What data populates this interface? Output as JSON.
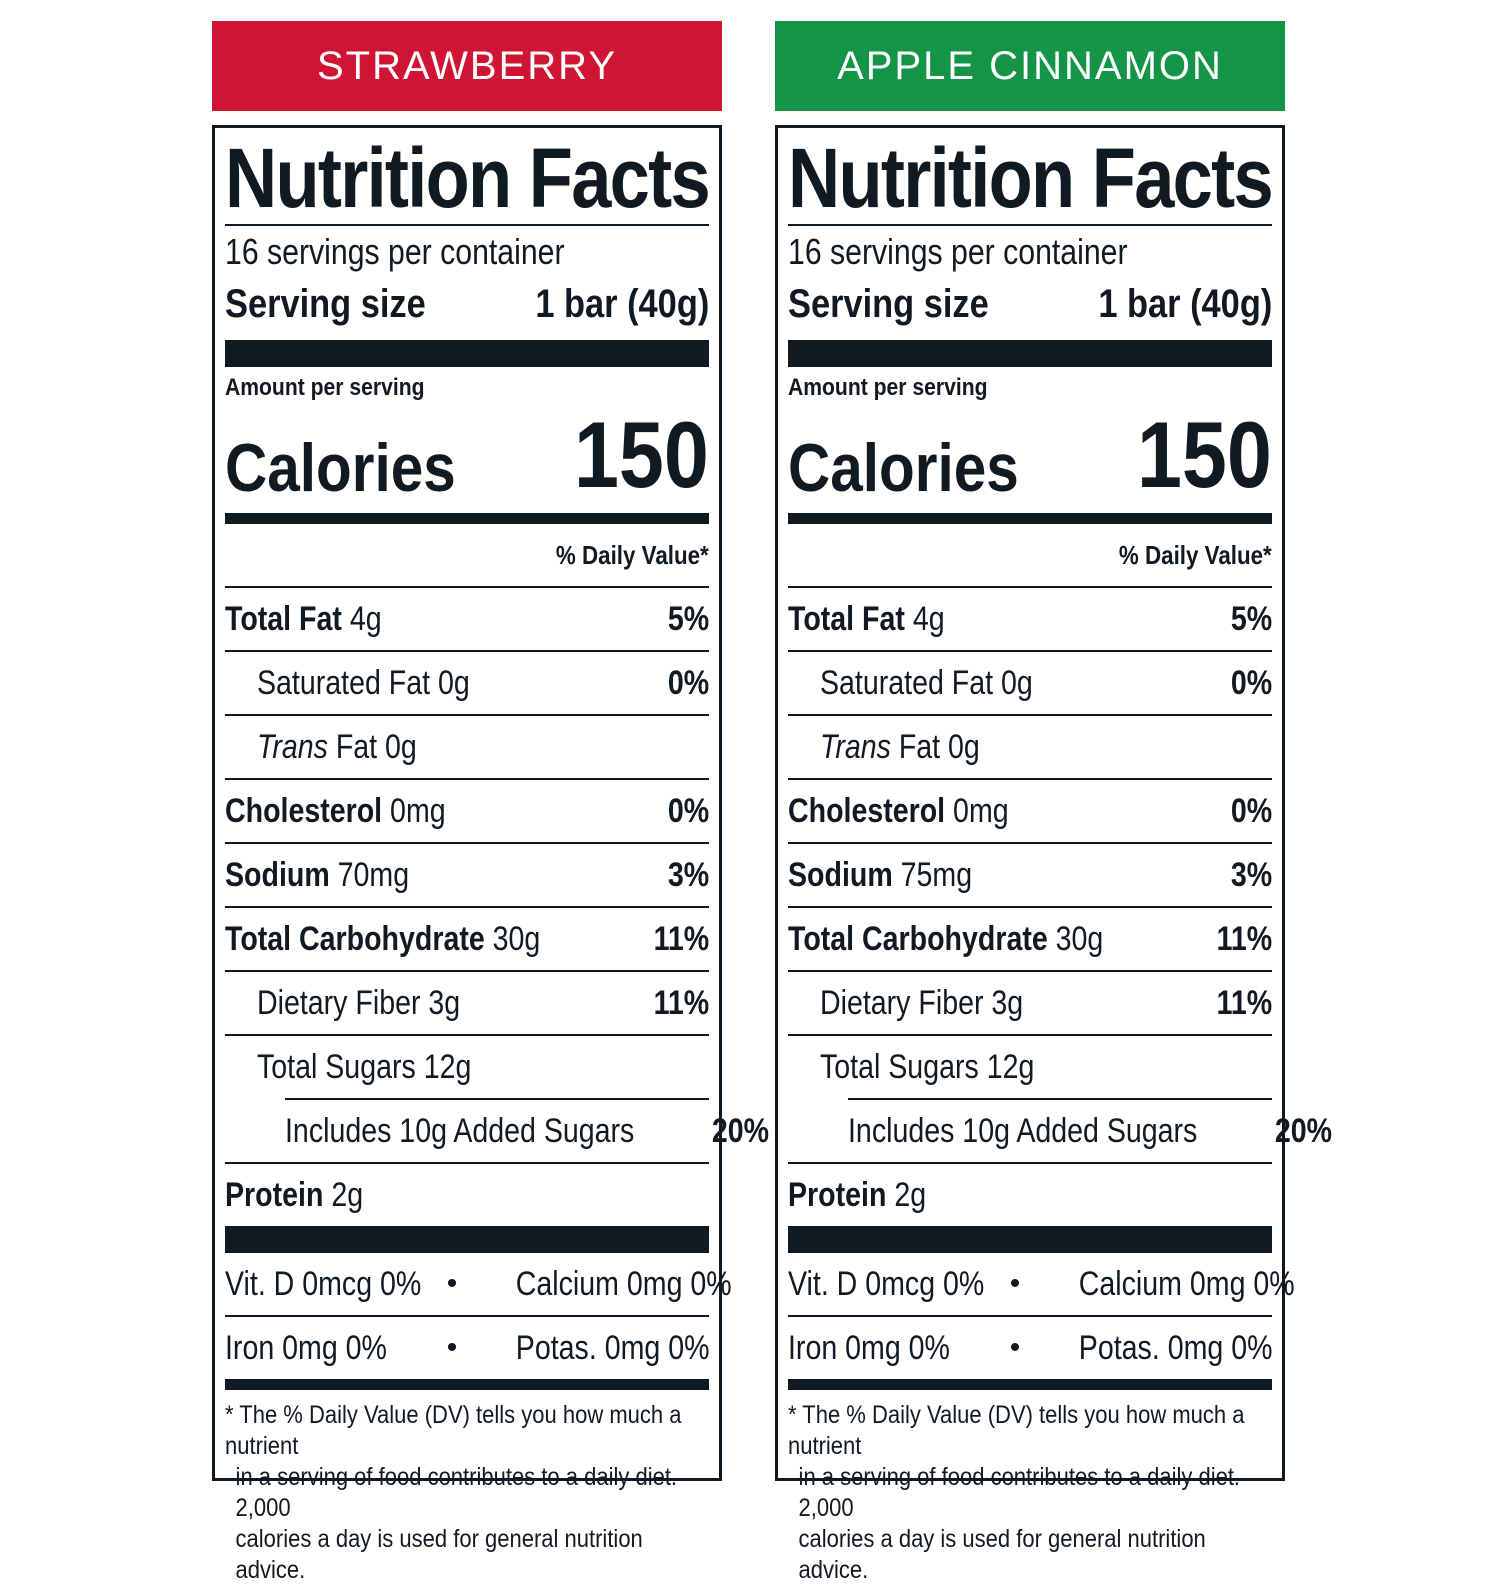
{
  "panels": [
    {
      "flavor": "STRAWBERRY",
      "accent": "#cf1434",
      "title": "Nutrition Facts",
      "servings": "16 servings per container",
      "serving_size_label": "Serving size",
      "serving_size_value": "1 bar (40g)",
      "amount_per_serving": "Amount per serving",
      "calories_label": "Calories",
      "calories_value": "150",
      "daily_value_header": "% Daily Value*",
      "nutrients": {
        "total_fat": {
          "name": "Total Fat",
          "amount": "4g",
          "dv": "5%"
        },
        "saturated_fat": {
          "name": "Saturated Fat 0g",
          "dv": "0%"
        },
        "trans_fat": {
          "name_italic": "Trans",
          "rest": "Fat 0g"
        },
        "cholesterol": {
          "name": "Cholesterol",
          "amount": "0mg",
          "dv": "0%"
        },
        "sodium": {
          "name": "Sodium",
          "amount": "70mg",
          "dv": "3%"
        },
        "total_carbohydrate": {
          "name": "Total Carbohydrate",
          "amount": "30g",
          "dv": "11%"
        },
        "dietary_fiber": {
          "name": "Dietary Fiber 3g",
          "dv": "11%"
        },
        "total_sugars": {
          "name": "Total Sugars 12g"
        },
        "added_sugars": {
          "name": "Includes 10g Added Sugars",
          "dv": "20%"
        },
        "protein": {
          "name": "Protein",
          "amount": "2g"
        }
      },
      "vitamins": {
        "vit_d": "Vit. D 0mcg 0%",
        "calcium": "Calcium 0mg 0%",
        "iron": "Iron 0mg 0%",
        "potassium": "Potas. 0mg 0%",
        "bullet": "•"
      },
      "footnote": [
        "* The % Daily Value (DV) tells you how much a nutrient",
        "in a serving of food contributes to a daily diet. 2,000",
        "calories a day is used for general nutrition advice."
      ]
    },
    {
      "flavor": "APPLE CINNAMON",
      "accent": "#139447",
      "title": "Nutrition Facts",
      "servings": "16 servings per container",
      "serving_size_label": "Serving size",
      "serving_size_value": "1 bar (40g)",
      "amount_per_serving": "Amount per serving",
      "calories_label": "Calories",
      "calories_value": "150",
      "daily_value_header": "% Daily Value*",
      "nutrients": {
        "total_fat": {
          "name": "Total Fat",
          "amount": "4g",
          "dv": "5%"
        },
        "saturated_fat": {
          "name": "Saturated Fat 0g",
          "dv": "0%"
        },
        "trans_fat": {
          "name_italic": "Trans",
          "rest": "Fat 0g"
        },
        "cholesterol": {
          "name": "Cholesterol",
          "amount": "0mg",
          "dv": "0%"
        },
        "sodium": {
          "name": "Sodium",
          "amount": "75mg",
          "dv": "3%"
        },
        "total_carbohydrate": {
          "name": "Total Carbohydrate",
          "amount": "30g",
          "dv": "11%"
        },
        "dietary_fiber": {
          "name": "Dietary Fiber 3g",
          "dv": "11%"
        },
        "total_sugars": {
          "name": "Total Sugars 12g"
        },
        "added_sugars": {
          "name": "Includes 10g Added Sugars",
          "dv": "20%"
        },
        "protein": {
          "name": "Protein",
          "amount": "2g"
        }
      },
      "vitamins": {
        "vit_d": "Vit. D 0mcg 0%",
        "calcium": "Calcium 0mg 0%",
        "iron": "Iron 0mg 0%",
        "potassium": "Potas. 0mg 0%",
        "bullet": "•"
      },
      "footnote": [
        "* The % Daily Value (DV) tells you how much a nutrient",
        "in a serving of food contributes to a daily diet. 2,000",
        "calories a day is used for general nutrition advice."
      ]
    }
  ]
}
